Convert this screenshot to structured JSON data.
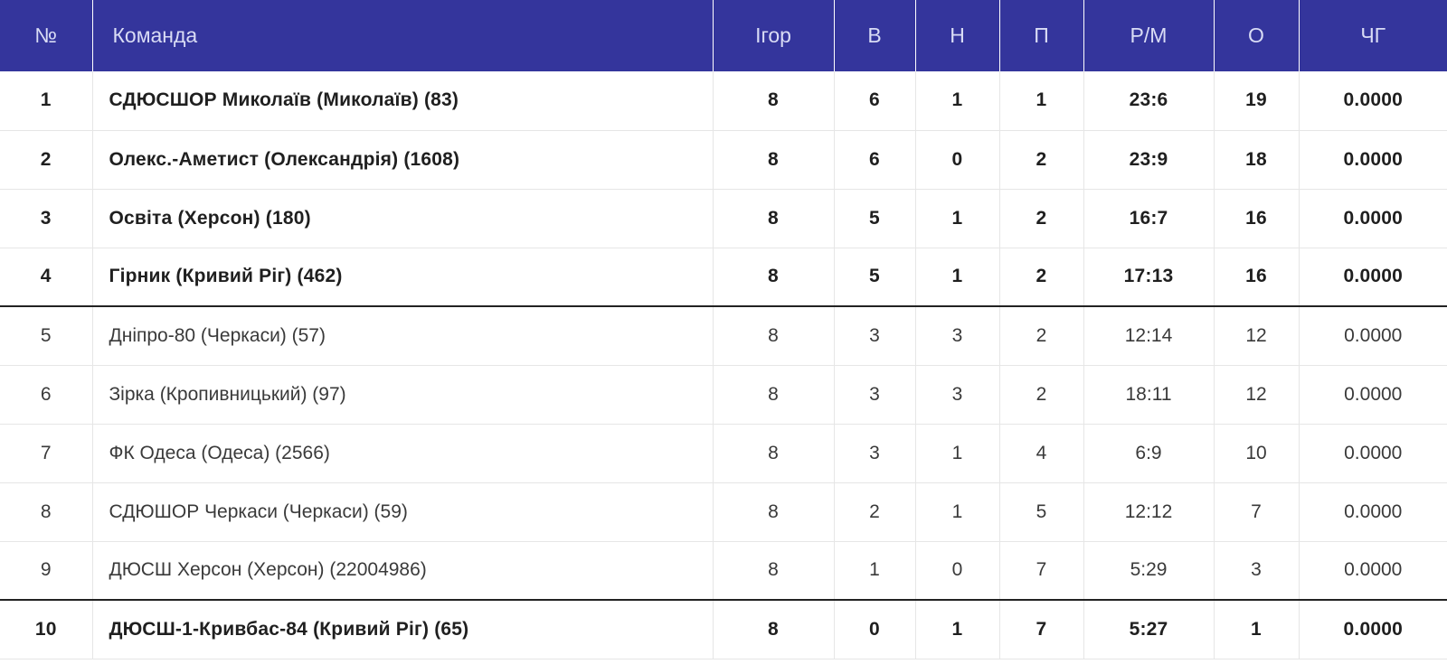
{
  "table": {
    "headers": {
      "pos": "№",
      "team": "Команда",
      "games": "Ігор",
      "w": "В",
      "d": "Н",
      "l": "П",
      "gd": "Р/М",
      "pts": "О",
      "ch": "ЧГ"
    },
    "colors": {
      "header_bg": "#34359c",
      "header_text": "#d9dcf5",
      "separator": "#222222"
    },
    "rows": [
      {
        "pos": "1",
        "team": "СДЮСШОР Миколаїв (Миколаїв) (83)",
        "games": "8",
        "w": "6",
        "d": "1",
        "l": "1",
        "gd": "23:6",
        "pts": "19",
        "ch": "0.0000"
      },
      {
        "pos": "2",
        "team": "Олекс.-Аметист (Олександрія) (1608)",
        "games": "8",
        "w": "6",
        "d": "0",
        "l": "2",
        "gd": "23:9",
        "pts": "18",
        "ch": "0.0000"
      },
      {
        "pos": "3",
        "team": "Освіта (Херсон) (180)",
        "games": "8",
        "w": "5",
        "d": "1",
        "l": "2",
        "gd": "16:7",
        "pts": "16",
        "ch": "0.0000"
      },
      {
        "pos": "4",
        "team": "Гірник (Кривий Ріг) (462)",
        "games": "8",
        "w": "5",
        "d": "1",
        "l": "2",
        "gd": "17:13",
        "pts": "16",
        "ch": "0.0000"
      },
      {
        "pos": "5",
        "team": "Дніпро-80 (Черкаси) (57)",
        "games": "8",
        "w": "3",
        "d": "3",
        "l": "2",
        "gd": "12:14",
        "pts": "12",
        "ch": "0.0000"
      },
      {
        "pos": "6",
        "team": "Зірка (Кропивницький) (97)",
        "games": "8",
        "w": "3",
        "d": "3",
        "l": "2",
        "gd": "18:11",
        "pts": "12",
        "ch": "0.0000"
      },
      {
        "pos": "7",
        "team": "ФК Одеса (Одеса) (2566)",
        "games": "8",
        "w": "3",
        "d": "1",
        "l": "4",
        "gd": "6:9",
        "pts": "10",
        "ch": "0.0000"
      },
      {
        "pos": "8",
        "team": "СДЮШОР Черкаси (Черкаси) (59)",
        "games": "8",
        "w": "2",
        "d": "1",
        "l": "5",
        "gd": "12:12",
        "pts": "7",
        "ch": "0.0000"
      },
      {
        "pos": "9",
        "team": "ДЮСШ Херсон (Херсон) (22004986)",
        "games": "8",
        "w": "1",
        "d": "0",
        "l": "7",
        "gd": "5:29",
        "pts": "3",
        "ch": "0.0000"
      },
      {
        "pos": "10",
        "team": "ДЮСШ-1-Кривбас-84 (Кривий Ріг) (65)",
        "games": "8",
        "w": "0",
        "d": "1",
        "l": "7",
        "gd": "5:27",
        "pts": "1",
        "ch": "0.0000"
      }
    ]
  }
}
